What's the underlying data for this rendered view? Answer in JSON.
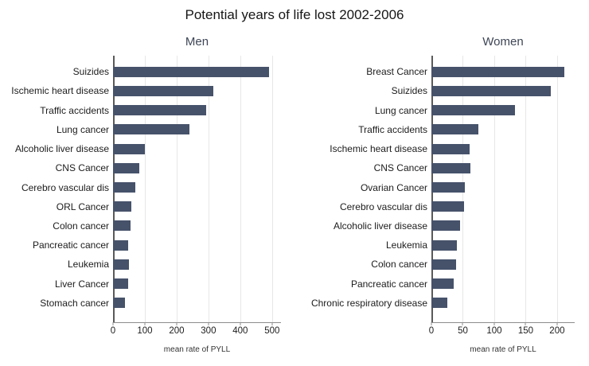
{
  "title": "Potential years of life lost 2002-2006",
  "chart_data": [
    {
      "type": "bar",
      "orientation": "horizontal",
      "title": "Men",
      "xlabel": "mean rate of PYLL",
      "categories": [
        "Suizides",
        "Ischemic heart disease",
        "Traffic accidents",
        "Lung cancer",
        "Alcoholic liver disease",
        "CNS Cancer",
        "Cerebro vascular dis",
        "ORL Cancer",
        "Colon cancer",
        "Pancreatic cancer",
        "Leukemia",
        "Liver Cancer",
        "Stomach cancer"
      ],
      "values": [
        490,
        315,
        293,
        240,
        100,
        82,
        69,
        57,
        56,
        48,
        50,
        48,
        38
      ],
      "xticks": [
        0,
        100,
        200,
        300,
        400,
        500
      ],
      "xlim": [
        0,
        528
      ],
      "grid": "vertical-only",
      "legend": "none"
    },
    {
      "type": "bar",
      "orientation": "horizontal",
      "title": "Women",
      "xlabel": "mean rate of PYLL",
      "categories": [
        "Breast Cancer",
        "Suizides",
        "Lung cancer",
        "Traffic accidents",
        "Ischemic heart disease",
        "CNS Cancer",
        "Ovarian Cancer",
        "Cerebro vascular dis",
        "Alcoholic liver disease",
        "Leukemia",
        "Colon cancer",
        "Pancreatic cancer",
        "Chronic respiratory disease"
      ],
      "values": [
        212,
        190,
        133,
        75,
        61,
        62,
        53,
        52,
        45,
        40,
        39,
        35,
        25
      ],
      "xticks": [
        0,
        50,
        100,
        150,
        200
      ],
      "xlim": [
        0,
        228
      ],
      "grid": "vertical-only",
      "legend": "none"
    }
  ],
  "colors": {
    "bar": "#46526a",
    "subtitle_text": "#3e4656",
    "title_text": "#161616",
    "label_text": "#1c1c1c",
    "gridline": "#e7e7e7",
    "axis_line": "#8c8c8c",
    "yaxis_line": "#5a5a5a"
  }
}
